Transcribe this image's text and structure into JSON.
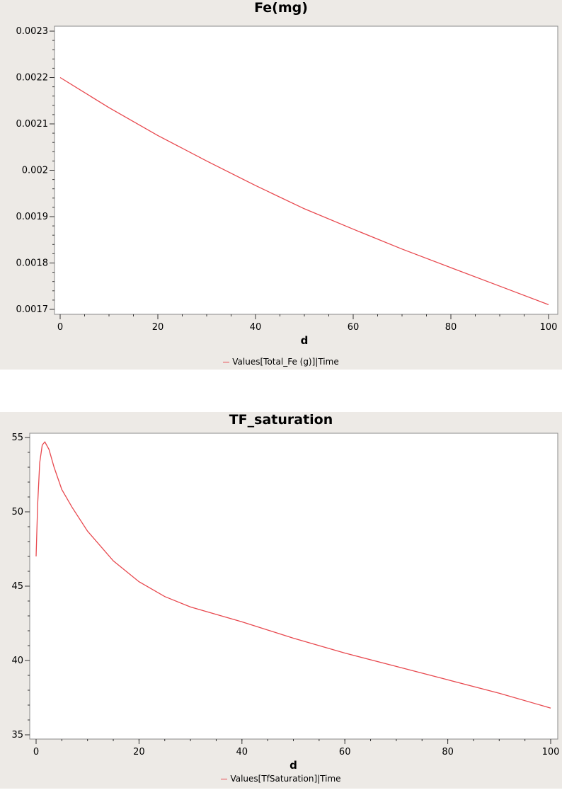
{
  "chart_data": [
    {
      "type": "line",
      "title": "Fe(mg)",
      "xlabel": "d",
      "ylabel": "",
      "xlim": [
        0,
        100
      ],
      "ylim": [
        0.0017,
        0.0023
      ],
      "x_ticks": [
        0,
        20,
        40,
        60,
        80,
        100
      ],
      "y_ticks": [
        0.0017,
        0.0018,
        0.0019,
        0.002,
        0.0021,
        0.0022,
        0.0023
      ],
      "x_tick_labels": [
        "0",
        "20",
        "40",
        "60",
        "80",
        "100"
      ],
      "y_tick_labels": [
        "0.0017",
        "0.0018",
        "0.0019",
        "0.002",
        "0.0021",
        "0.0022",
        "0.0023"
      ],
      "legend_position": "bottom-center",
      "grid": false,
      "series": [
        {
          "name": "Values[Total_Fe (g)]|Time",
          "color": "#e8494f",
          "x": [
            0,
            10,
            20,
            30,
            40,
            50,
            60,
            70,
            80,
            90,
            100
          ],
          "y": [
            0.0022,
            0.002135,
            0.002075,
            0.00202,
            0.001967,
            0.001917,
            0.001873,
            0.00183,
            0.00179,
            0.00175,
            0.00171
          ]
        }
      ]
    },
    {
      "type": "line",
      "title": "TF_saturation",
      "xlabel": "d",
      "ylabel": "",
      "xlim": [
        0,
        100
      ],
      "ylim": [
        35,
        55
      ],
      "x_ticks": [
        0,
        20,
        40,
        60,
        80,
        100
      ],
      "y_ticks": [
        35,
        40,
        45,
        50,
        55
      ],
      "x_tick_labels": [
        "0",
        "20",
        "40",
        "60",
        "80",
        "100"
      ],
      "y_tick_labels": [
        "35",
        "40",
        "45",
        "50",
        "55"
      ],
      "legend_position": "bottom-center",
      "grid": false,
      "series": [
        {
          "name": "Values[TfSaturation]|Time",
          "color": "#e8494f",
          "x": [
            0,
            0.3,
            0.7,
            1.2,
            1.7,
            2.5,
            3.5,
            5,
            7,
            10,
            15,
            20,
            25,
            30,
            40,
            50,
            60,
            70,
            80,
            90,
            100
          ],
          "y": [
            47,
            50.5,
            53.3,
            54.5,
            54.7,
            54.2,
            53,
            51.5,
            50.3,
            48.7,
            46.7,
            45.3,
            44.3,
            43.6,
            42.6,
            41.5,
            40.5,
            39.6,
            38.7,
            37.8,
            36.8
          ]
        }
      ]
    }
  ]
}
